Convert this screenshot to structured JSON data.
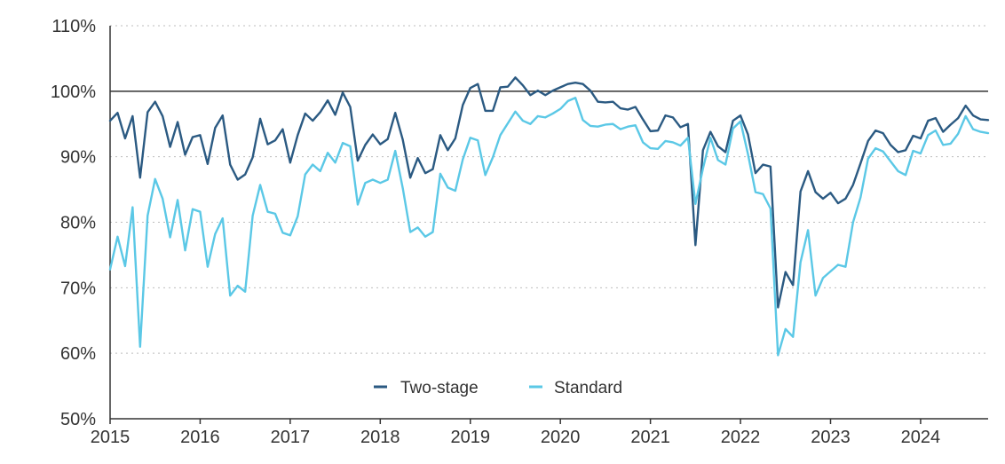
{
  "chart_data": {
    "type": "line",
    "title": "",
    "xlabel": "",
    "ylabel": "",
    "x_start": "2015-01",
    "x_end": "2024-10",
    "x_ticks": [
      "2015",
      "2016",
      "2017",
      "2018",
      "2019",
      "2020",
      "2021",
      "2022",
      "2023",
      "2024"
    ],
    "ylim": [
      50,
      110
    ],
    "y_ticks": [
      50,
      60,
      70,
      80,
      90,
      100,
      110
    ],
    "y_tick_labels": [
      "50%",
      "60%",
      "70%",
      "80%",
      "90%",
      "100%",
      "110%"
    ],
    "reference_line": 100,
    "grid": true,
    "legend_position": "bottom-center",
    "series": [
      {
        "name": "Two-stage",
        "color": "#2b5a82",
        "values": [
          95.5,
          96.7,
          92.8,
          96.2,
          86.8,
          96.8,
          98.4,
          96.2,
          91.5,
          95.3,
          90.3,
          93.0,
          93.3,
          88.9,
          94.4,
          96.3,
          88.8,
          86.5,
          87.3,
          89.9,
          95.8,
          91.9,
          92.5,
          94.2,
          89.1,
          93.3,
          96.6,
          95.5,
          96.8,
          98.6,
          96.4,
          99.8,
          97.6,
          89.4,
          91.8,
          93.4,
          91.9,
          92.7,
          96.7,
          92.6,
          86.8,
          89.8,
          87.5,
          88.1,
          93.3,
          91.0,
          92.8,
          97.9,
          100.5,
          101.1,
          97.0,
          97.0,
          100.6,
          100.7,
          102.1,
          100.9,
          99.4,
          100.1,
          99.4,
          100.1,
          100.6,
          101.1,
          101.3,
          101.1,
          100.1,
          98.4,
          98.3,
          98.4,
          97.4,
          97.2,
          97.6,
          95.7,
          93.9,
          94.0,
          96.3,
          96.0,
          94.5,
          95.0,
          76.5,
          91.0,
          93.8,
          91.6,
          90.7,
          95.5,
          96.3,
          93.4,
          87.5,
          88.8,
          88.5,
          67.0,
          72.4,
          70.4,
          84.7,
          87.8,
          84.6,
          83.6,
          84.5,
          82.9,
          83.6,
          85.7,
          89.0,
          92.4,
          94.0,
          93.6,
          91.8,
          90.7,
          91.0,
          93.2,
          92.8,
          95.5,
          95.9,
          93.8,
          94.9,
          95.9,
          97.8,
          96.3,
          95.7,
          95.6
        ]
      },
      {
        "name": "Standard",
        "color": "#5bc8e6",
        "values": [
          72.8,
          77.8,
          73.3,
          82.3,
          61.0,
          81.0,
          86.6,
          83.6,
          77.7,
          83.4,
          75.7,
          82.0,
          81.6,
          73.2,
          78.2,
          80.6,
          68.8,
          70.3,
          69.4,
          81.0,
          85.7,
          81.6,
          81.3,
          78.4,
          78.0,
          80.9,
          87.3,
          88.8,
          87.8,
          90.6,
          89.1,
          92.1,
          91.6,
          82.7,
          86.0,
          86.5,
          86.0,
          86.5,
          90.9,
          85.2,
          78.5,
          79.2,
          77.8,
          78.5,
          87.4,
          85.3,
          84.8,
          89.6,
          92.9,
          92.5,
          87.2,
          89.9,
          93.3,
          95.1,
          96.9,
          95.5,
          95.0,
          96.2,
          96.0,
          96.6,
          97.3,
          98.5,
          99.0,
          95.6,
          94.7,
          94.6,
          94.9,
          95.0,
          94.2,
          94.6,
          94.8,
          92.2,
          91.3,
          91.2,
          92.4,
          92.2,
          91.7,
          92.9,
          82.8,
          88.2,
          92.9,
          89.5,
          88.8,
          94.3,
          95.4,
          90.4,
          84.6,
          84.3,
          82.1,
          59.7,
          63.7,
          62.5,
          73.9,
          78.8,
          68.8,
          71.5,
          72.5,
          73.5,
          73.2,
          80.0,
          83.8,
          89.7,
          91.3,
          90.8,
          89.3,
          87.8,
          87.2,
          90.9,
          90.5,
          93.3,
          94.0,
          91.8,
          92.0,
          93.5,
          96.2,
          94.2,
          93.8,
          93.6
        ]
      }
    ]
  }
}
